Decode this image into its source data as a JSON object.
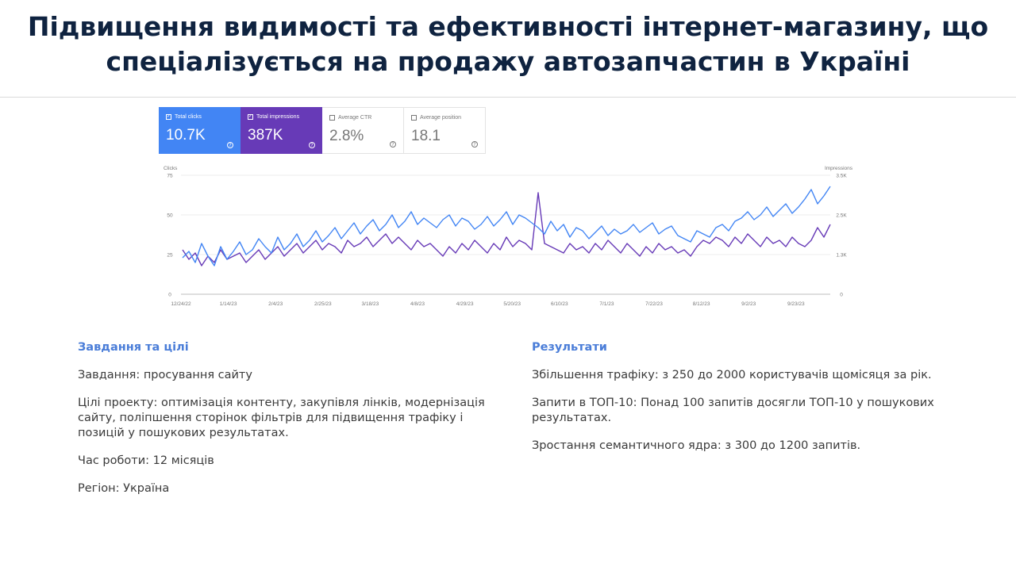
{
  "title": "Підвищення видимості та ефективності інтернет-магазину, що спеціалізується на продажу автозапчастин в Україні",
  "cards": [
    {
      "label": "Total clicks",
      "value": "10.7K",
      "checked": true,
      "color": "#4285f4"
    },
    {
      "label": "Total impressions",
      "value": "387K",
      "checked": true,
      "color": "#673ab7"
    },
    {
      "label": "Average CTR",
      "value": "2.8%",
      "checked": false
    },
    {
      "label": "Average position",
      "value": "18.1",
      "checked": false
    }
  ],
  "chart_data": {
    "type": "line",
    "y_left_label": "Clicks",
    "y_right_label": "Impressions",
    "y_left_ticks": [
      "75",
      "50",
      "25",
      "0"
    ],
    "y_right_ticks": [
      "3.5K",
      "2.5K",
      "1.3K",
      "0"
    ],
    "ylim_left": [
      0,
      75
    ],
    "ylim_right": [
      0,
      3.75
    ],
    "x_ticks": [
      "12/24/22",
      "1/14/23",
      "2/4/23",
      "2/25/23",
      "3/18/23",
      "4/8/23",
      "4/29/23",
      "5/20/23",
      "6/10/23",
      "7/1/23",
      "7/22/23",
      "8/12/23",
      "9/2/23",
      "9/23/23"
    ],
    "series": [
      {
        "name": "Total clicks",
        "color": "#4285f4",
        "values": [
          23,
          27,
          20,
          32,
          24,
          18,
          30,
          22,
          27,
          33,
          25,
          28,
          35,
          30,
          26,
          36,
          28,
          32,
          38,
          30,
          34,
          40,
          33,
          37,
          42,
          35,
          40,
          45,
          38,
          43,
          47,
          40,
          44,
          50,
          42,
          46,
          52,
          44,
          48,
          45,
          42,
          47,
          50,
          43,
          48,
          46,
          41,
          44,
          49,
          43,
          47,
          52,
          44,
          50,
          48,
          45,
          42,
          38,
          46,
          40,
          44,
          36,
          42,
          40,
          35,
          39,
          43,
          37,
          41,
          38,
          40,
          44,
          39,
          42,
          45,
          38,
          41,
          43,
          37,
          35,
          33,
          40,
          38,
          36,
          42,
          44,
          40,
          46,
          48,
          52,
          47,
          50,
          55,
          49,
          53,
          57,
          51,
          55,
          60,
          66,
          57,
          62,
          68
        ]
      },
      {
        "name": "Total impressions",
        "color": "#673ab7",
        "values": [
          1.4,
          1.1,
          1.3,
          0.9,
          1.2,
          1.0,
          1.4,
          1.1,
          1.2,
          1.3,
          1.0,
          1.2,
          1.4,
          1.1,
          1.3,
          1.5,
          1.2,
          1.4,
          1.6,
          1.3,
          1.5,
          1.7,
          1.4,
          1.6,
          1.5,
          1.3,
          1.7,
          1.5,
          1.6,
          1.8,
          1.5,
          1.7,
          1.9,
          1.6,
          1.8,
          1.6,
          1.4,
          1.7,
          1.5,
          1.6,
          1.4,
          1.2,
          1.5,
          1.3,
          1.6,
          1.4,
          1.7,
          1.5,
          1.3,
          1.6,
          1.4,
          1.8,
          1.5,
          1.7,
          1.6,
          1.4,
          3.2,
          1.6,
          1.5,
          1.4,
          1.3,
          1.6,
          1.4,
          1.5,
          1.3,
          1.6,
          1.4,
          1.7,
          1.5,
          1.3,
          1.6,
          1.4,
          1.2,
          1.5,
          1.3,
          1.6,
          1.4,
          1.5,
          1.3,
          1.4,
          1.2,
          1.5,
          1.7,
          1.6,
          1.8,
          1.7,
          1.5,
          1.8,
          1.6,
          1.9,
          1.7,
          1.5,
          1.8,
          1.6,
          1.7,
          1.5,
          1.8,
          1.6,
          1.5,
          1.7,
          2.1,
          1.8,
          2.2
        ]
      }
    ]
  },
  "left": {
    "heading": "Завдання та цілі",
    "items": [
      "Завдання: просування сайту",
      "Цілі проекту: оптимізація контенту, закупівля лінків, модернізація сайту, поліпшення сторінок фільтрів для підвищення трафіку і позицій у пошукових результатах.",
      "Час роботи: 12 місяців",
      "Регіон: Україна"
    ]
  },
  "right": {
    "heading": "Результати",
    "items": [
      "Збільшення трафіку: з 250 до 2000 користувачів щомісяця за рік.",
      "Запити в ТОП-10: Понад 100 запитів досягли ТОП-10 у пошукових результатах.",
      "Зростання семантичного ядра: з 300 до 1200 запитів."
    ]
  }
}
